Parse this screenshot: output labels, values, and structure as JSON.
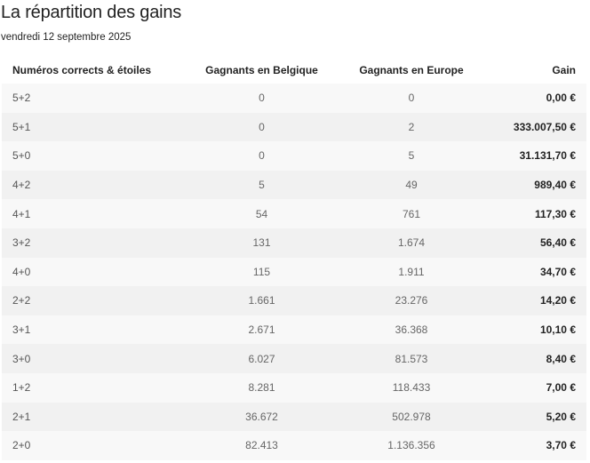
{
  "page": {
    "title": "La répartition des gains",
    "date": "vendredi 12 septembre 2025"
  },
  "table": {
    "headers": {
      "combination": "Numéros corrects & étoiles",
      "winners_belgium": "Gagnants en Belgique",
      "winners_europe": "Gagnants en Europe",
      "gain": "Gain"
    },
    "rows": [
      {
        "combination": "5+2",
        "winners_belgium": "0",
        "winners_europe": "0",
        "gain": "0,00 €"
      },
      {
        "combination": "5+1",
        "winners_belgium": "0",
        "winners_europe": "2",
        "gain": "333.007,50 €"
      },
      {
        "combination": "5+0",
        "winners_belgium": "0",
        "winners_europe": "5",
        "gain": "31.131,70 €"
      },
      {
        "combination": "4+2",
        "winners_belgium": "5",
        "winners_europe": "49",
        "gain": "989,40 €"
      },
      {
        "combination": "4+1",
        "winners_belgium": "54",
        "winners_europe": "761",
        "gain": "117,30 €"
      },
      {
        "combination": "3+2",
        "winners_belgium": "131",
        "winners_europe": "1.674",
        "gain": "56,40 €"
      },
      {
        "combination": "4+0",
        "winners_belgium": "115",
        "winners_europe": "1.911",
        "gain": "34,70 €"
      },
      {
        "combination": "2+2",
        "winners_belgium": "1.661",
        "winners_europe": "23.276",
        "gain": "14,20 €"
      },
      {
        "combination": "3+1",
        "winners_belgium": "2.671",
        "winners_europe": "36.368",
        "gain": "10,10 €"
      },
      {
        "combination": "3+0",
        "winners_belgium": "6.027",
        "winners_europe": "81.573",
        "gain": "8,40 €"
      },
      {
        "combination": "1+2",
        "winners_belgium": "8.281",
        "winners_europe": "118.433",
        "gain": "7,00 €"
      },
      {
        "combination": "2+1",
        "winners_belgium": "36.672",
        "winners_europe": "502.978",
        "gain": "5,20 €"
      },
      {
        "combination": "2+0",
        "winners_belgium": "82.413",
        "winners_europe": "1.136.356",
        "gain": "3,70 €"
      }
    ]
  },
  "colors": {
    "row_dark": "#f1f1f1",
    "row_light": "#f8f8f8",
    "text_dark": "#222222",
    "text_muted": "#666666"
  }
}
